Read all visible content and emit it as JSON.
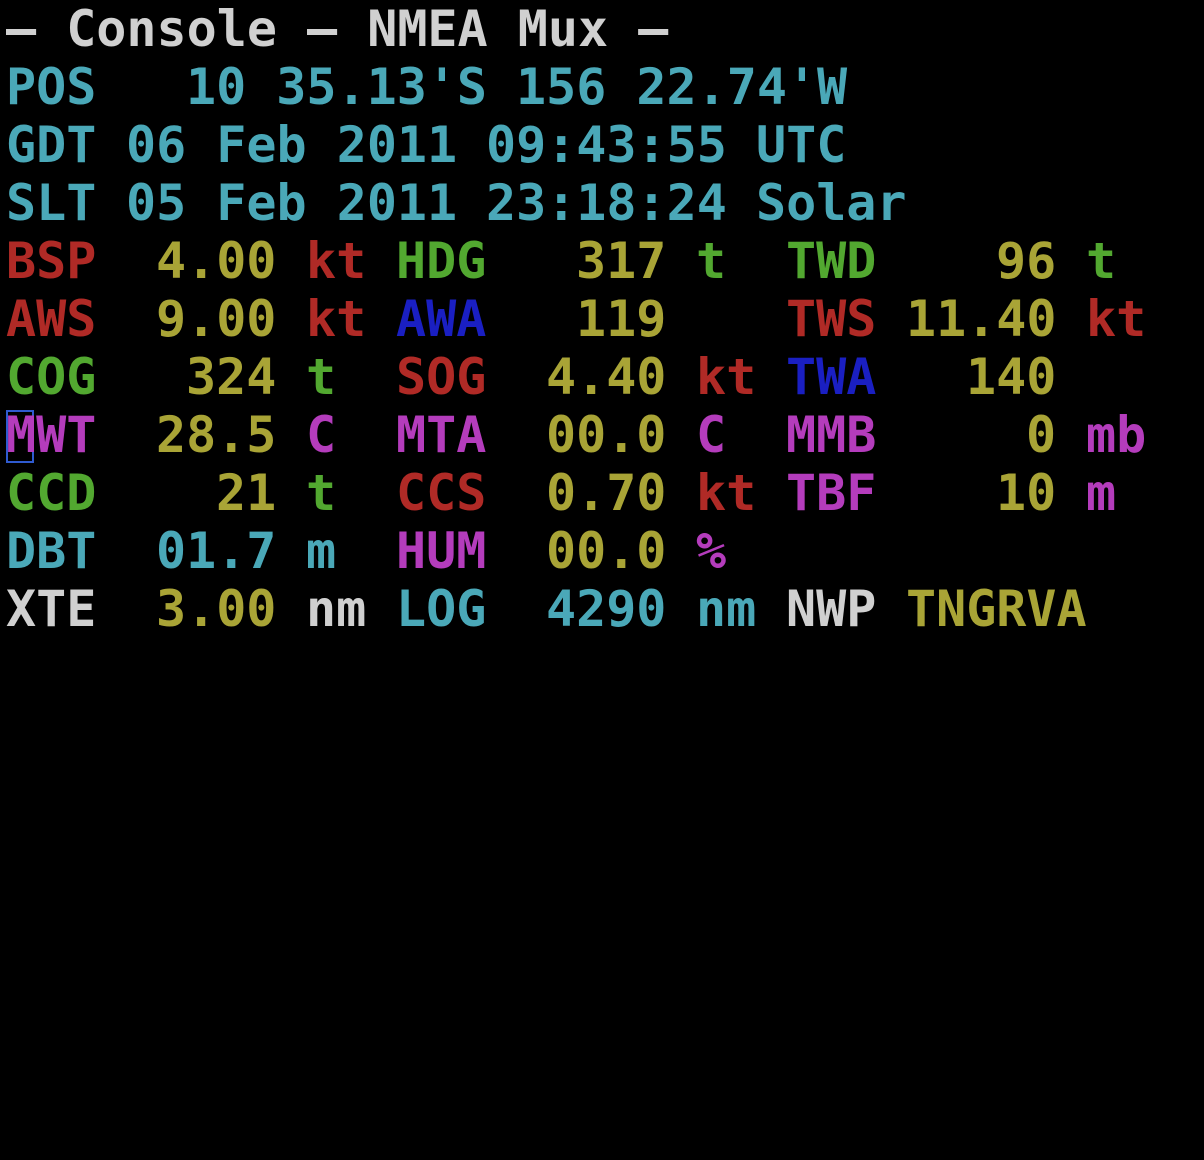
{
  "colors": {
    "white": "#d0d0d0",
    "cyan": "#4aa8b8",
    "red": "#b02a26",
    "yellow": "#a9a436",
    "green": "#52a830",
    "blue": "#1a1fc2",
    "magenta": "#b43cbc",
    "cursor": "#2f5bd0"
  },
  "title": "– Console – NMEA Mux –",
  "position": {
    "label": "POS",
    "lat": "10 35.13'S",
    "lon": "156 22.74'W"
  },
  "gps_time": {
    "label": "GDT",
    "date": "06 Feb 2011",
    "time": "09:43:55",
    "zone": "UTC"
  },
  "solar_time": {
    "label": "SLT",
    "date": "05 Feb 2011",
    "time": "23:18:24",
    "zone": "Solar"
  },
  "rows": [
    [
      {
        "label": "BSP",
        "value": "4.00",
        "unit": "kt",
        "label_color": "red",
        "unit_color": "red"
      },
      {
        "label": "HDG",
        "value": "317",
        "unit": "t",
        "label_color": "green",
        "unit_color": "green"
      },
      {
        "label": "TWD",
        "value": "96",
        "unit": "t",
        "label_color": "green",
        "unit_color": "green"
      }
    ],
    [
      {
        "label": "AWS",
        "value": "9.00",
        "unit": "kt",
        "label_color": "red",
        "unit_color": "red"
      },
      {
        "label": "AWA",
        "value": "119",
        "unit": "",
        "label_color": "blue",
        "unit_color": "blue"
      },
      {
        "label": "TWS",
        "value": "11.40",
        "unit": "kt",
        "label_color": "red",
        "unit_color": "red"
      }
    ],
    [
      {
        "label": "COG",
        "value": "324",
        "unit": "t",
        "label_color": "green",
        "unit_color": "green"
      },
      {
        "label": "SOG",
        "value": "4.40",
        "unit": "kt",
        "label_color": "red",
        "unit_color": "red"
      },
      {
        "label": "TWA",
        "value": "140",
        "unit": "",
        "label_color": "blue",
        "unit_color": "blue"
      }
    ],
    [
      {
        "label": "MWT",
        "value": "28.5",
        "unit": "C",
        "label_color": "magenta",
        "unit_color": "magenta"
      },
      {
        "label": "MTA",
        "value": "00.0",
        "unit": "C",
        "label_color": "magenta",
        "unit_color": "magenta"
      },
      {
        "label": "MMB",
        "value": "0",
        "unit": "mb",
        "label_color": "magenta",
        "unit_color": "magenta"
      }
    ],
    [
      {
        "label": "CCD",
        "value": "21",
        "unit": "t",
        "label_color": "green",
        "unit_color": "green"
      },
      {
        "label": "CCS",
        "value": "0.70",
        "unit": "kt",
        "label_color": "red",
        "unit_color": "red"
      },
      {
        "label": "TBF",
        "value": "10",
        "unit": "m",
        "label_color": "magenta",
        "unit_color": "magenta"
      }
    ],
    [
      {
        "label": "DBT",
        "value": "01.7",
        "unit": "m",
        "label_color": "cyan",
        "unit_color": "cyan"
      },
      {
        "label": "HUM",
        "value": "00.0",
        "unit": "%",
        "label_color": "magenta",
        "unit_color": "magenta"
      }
    ]
  ],
  "xte_row": {
    "xte": {
      "label": "XTE",
      "value": "3.00",
      "unit": "nm"
    },
    "log": {
      "label": "LOG",
      "value": "4290",
      "unit": "nm"
    },
    "nwp": {
      "label": "NWP",
      "value": "TNGRVA"
    }
  }
}
